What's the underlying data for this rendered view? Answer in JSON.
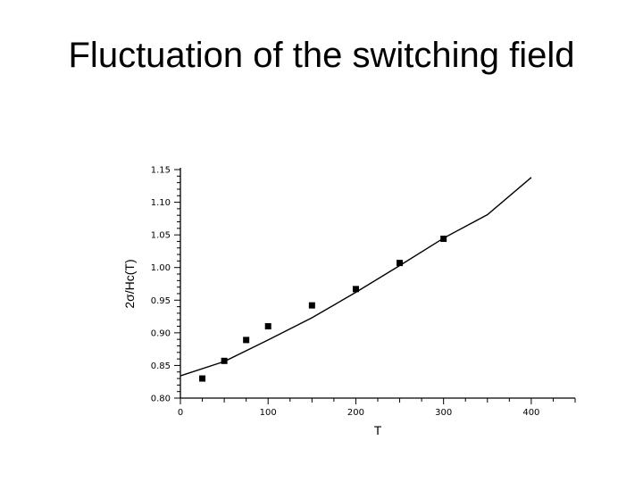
{
  "slide": {
    "title": "Fluctuation of the switching field"
  },
  "chart_data": {
    "type": "scatter",
    "xlabel": "T",
    "ylabel": "2σ/Hc(T)",
    "xlim": [
      0,
      450
    ],
    "ylim": [
      0.8,
      1.15
    ],
    "x_ticks": [
      0,
      100,
      200,
      300,
      400
    ],
    "x_tick_labels": [
      "0",
      "100",
      "200",
      "300",
      "400"
    ],
    "y_ticks": [
      0.8,
      0.85,
      0.9,
      0.95,
      1.0,
      1.05,
      1.1,
      1.15
    ],
    "y_tick_labels": [
      "0.80",
      "0.85",
      "0.90",
      "0.95",
      "1.00",
      "1.05",
      "1.10",
      "1.15"
    ],
    "grid": false,
    "legend": false,
    "series": [
      {
        "kind": "points",
        "x": [
          25,
          50,
          75,
          100,
          150,
          200,
          250,
          300
        ],
        "y": [
          0.83,
          0.857,
          0.889,
          0.91,
          0.942,
          0.967,
          1.007,
          1.044
        ]
      },
      {
        "kind": "line",
        "x": [
          0,
          50,
          100,
          150,
          200,
          250,
          300,
          350,
          400
        ],
        "y": [
          0.834,
          0.856,
          0.889,
          0.923,
          0.962,
          1.003,
          1.045,
          1.081,
          1.138
        ]
      }
    ],
    "colors": {
      "marker": "#000000",
      "line": "#000000",
      "axis": "#000000"
    }
  }
}
